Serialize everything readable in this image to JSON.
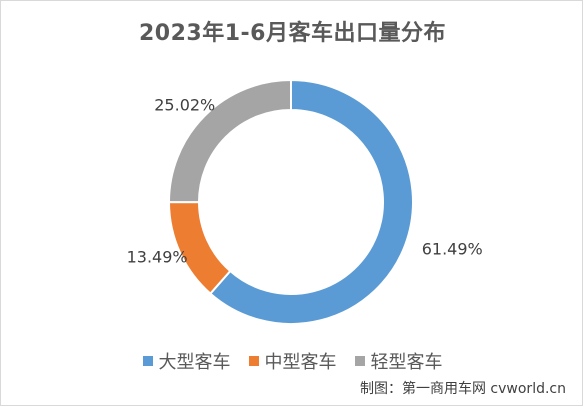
{
  "chart_data": {
    "type": "pie",
    "variant": "donut",
    "title": "2023年1-6月客车出口量分布",
    "categories": [
      "大型客车",
      "中型客车",
      "轻型客车"
    ],
    "values": [
      61.49,
      13.49,
      25.02
    ],
    "value_labels": [
      "61.49%",
      "13.49%",
      "25.02%"
    ],
    "colors": [
      "#5b9bd5",
      "#ed7d31",
      "#a5a5a5"
    ],
    "legend_position": "bottom"
  },
  "source_credit": "制图：第一商用车网 cvworld.cn"
}
